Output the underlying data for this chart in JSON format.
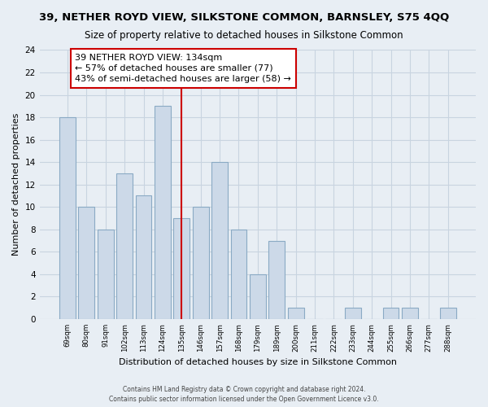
{
  "title": "39, NETHER ROYD VIEW, SILKSTONE COMMON, BARNSLEY, S75 4QQ",
  "subtitle": "Size of property relative to detached houses in Silkstone Common",
  "xlabel": "Distribution of detached houses by size in Silkstone Common",
  "ylabel": "Number of detached properties",
  "bar_labels": [
    "69sqm",
    "80sqm",
    "91sqm",
    "102sqm",
    "113sqm",
    "124sqm",
    "135sqm",
    "146sqm",
    "157sqm",
    "168sqm",
    "179sqm",
    "189sqm",
    "200sqm",
    "211sqm",
    "222sqm",
    "233sqm",
    "244sqm",
    "255sqm",
    "266sqm",
    "277sqm",
    "288sqm"
  ],
  "bar_values": [
    18,
    10,
    8,
    13,
    11,
    19,
    9,
    10,
    14,
    8,
    4,
    7,
    1,
    0,
    0,
    1,
    0,
    1,
    1,
    0,
    1
  ],
  "bar_color": "#ccd9e8",
  "bar_edge_color": "#8aaac4",
  "highlight_index": 6,
  "highlight_line_color": "#cc0000",
  "annotation_line1": "39 NETHER ROYD VIEW: 134sqm",
  "annotation_line2": "← 57% of detached houses are smaller (77)",
  "annotation_line3": "43% of semi-detached houses are larger (58) →",
  "annotation_box_edge": "#cc0000",
  "ylim": [
    0,
    24
  ],
  "yticks": [
    0,
    2,
    4,
    6,
    8,
    10,
    12,
    14,
    16,
    18,
    20,
    22,
    24
  ],
  "footer_line1": "Contains HM Land Registry data © Crown copyright and database right 2024.",
  "footer_line2": "Contains public sector information licensed under the Open Government Licence v3.0.",
  "background_color": "#e8eef4",
  "grid_color": "#c8d4e0",
  "title_fontsize": 9.5,
  "subtitle_fontsize": 8.5
}
